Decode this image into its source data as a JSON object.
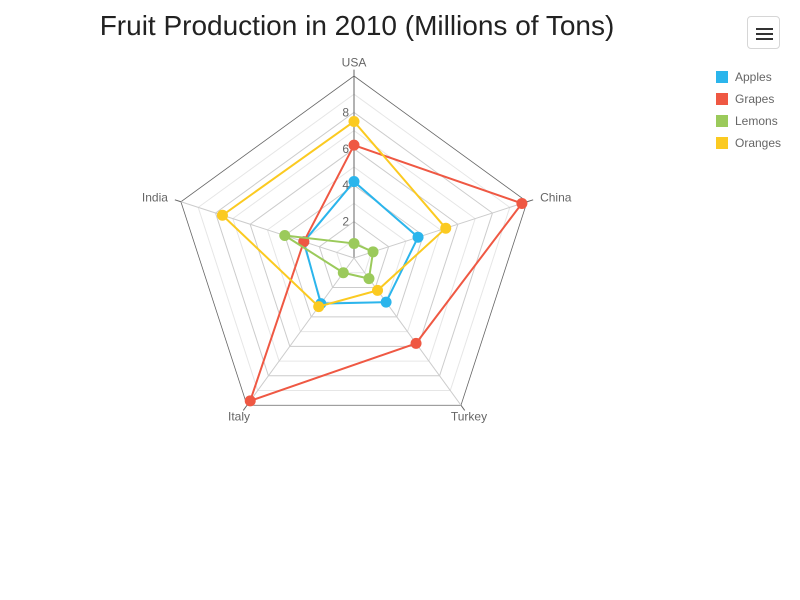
{
  "chart_data": {
    "type": "radar",
    "title": "Fruit Production in 2010 (Millions of Tons)",
    "axes": [
      "USA",
      "China",
      "Turkey",
      "Italy",
      "India"
    ],
    "rlim": [
      0,
      10
    ],
    "ticks": [
      2,
      4,
      6,
      8
    ],
    "grid": true,
    "legend_position": "top-right",
    "series": [
      {
        "name": "Apples",
        "color": "#2bb5ec",
        "values": [
          4.2,
          3.7,
          3.0,
          3.1,
          2.9
        ]
      },
      {
        "name": "Grapes",
        "color": "#ef5843",
        "values": [
          6.2,
          9.7,
          5.8,
          9.7,
          2.9
        ]
      },
      {
        "name": "Lemons",
        "color": "#9bca5b",
        "values": [
          0.8,
          1.1,
          1.4,
          1.0,
          4.0
        ]
      },
      {
        "name": "Oranges",
        "color": "#fbca21",
        "values": [
          7.5,
          5.3,
          2.2,
          3.3,
          7.6
        ]
      }
    ]
  },
  "toolbar": {
    "menu_icon": "hamburger-menu-icon"
  }
}
